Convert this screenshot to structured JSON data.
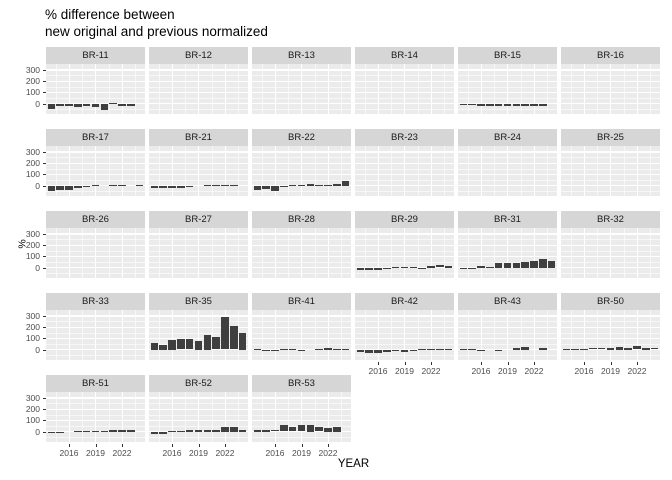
{
  "title": {
    "line1": "% difference between",
    "line2": "new original and previous normalized"
  },
  "axes": {
    "x_label": "YEAR",
    "y_label": "%",
    "y_ticks": [
      300,
      200,
      100,
      0
    ],
    "x_ticks": [
      2016,
      2019,
      2022
    ]
  },
  "chart_data": {
    "type": "bar",
    "title": "% difference between new original and previous normalized",
    "xlabel": "YEAR",
    "ylabel": "%",
    "years": [
      2014,
      2015,
      2016,
      2017,
      2018,
      2019,
      2020,
      2021,
      2022,
      2023,
      2024
    ],
    "ylim": [
      -110,
      350
    ],
    "y_major_gridlines": [
      -100,
      0,
      100,
      200,
      300
    ],
    "y_minor_gridlines": [
      -50,
      50,
      150,
      250
    ],
    "x_major_gridlines": [
      2016,
      2019,
      2022
    ],
    "x_minor_gridlines": [
      2014.5,
      2017.5,
      2020.5,
      2023.5
    ],
    "legend": "none",
    "facet_columns": 6,
    "facets": [
      {
        "label": "BR-11",
        "values": [
          -45,
          -20,
          -25,
          -30,
          -25,
          -30,
          -55,
          4,
          -20,
          -20,
          null
        ]
      },
      {
        "label": "BR-12",
        "values": []
      },
      {
        "label": "BR-13",
        "values": []
      },
      {
        "label": "BR-14",
        "values": []
      },
      {
        "label": "BR-15",
        "values": [
          -8,
          -12,
          -18,
          -22,
          -18,
          -18,
          -18,
          -22,
          -18,
          -18,
          null
        ]
      },
      {
        "label": "BR-16",
        "values": []
      },
      {
        "label": "BR-17",
        "values": [
          -50,
          -42,
          -35,
          -22,
          -8,
          2,
          null,
          5,
          8,
          null,
          8
        ]
      },
      {
        "label": "BR-21",
        "values": [
          -20,
          -20,
          -20,
          -25,
          -15,
          null,
          3,
          2,
          3,
          3,
          null
        ]
      },
      {
        "label": "BR-22",
        "values": [
          -35,
          -28,
          -45,
          -15,
          5,
          8,
          18,
          8,
          8,
          18,
          45
        ]
      },
      {
        "label": "BR-23",
        "values": []
      },
      {
        "label": "BR-24",
        "values": []
      },
      {
        "label": "BR-25",
        "values": []
      },
      {
        "label": "BR-26",
        "values": []
      },
      {
        "label": "BR-27",
        "values": []
      },
      {
        "label": "BR-28",
        "values": []
      },
      {
        "label": "BR-29",
        "values": [
          -18,
          -25,
          -20,
          -10,
          5,
          8,
          8,
          -5,
          18,
          25,
          18
        ]
      },
      {
        "label": "BR-31",
        "values": [
          -5,
          -10,
          15,
          8,
          40,
          45,
          45,
          50,
          60,
          80,
          60
        ]
      },
      {
        "label": "BR-32",
        "values": []
      },
      {
        "label": "BR-33",
        "values": []
      },
      {
        "label": "BR-35",
        "values": [
          60,
          45,
          85,
          95,
          95,
          80,
          130,
          110,
          285,
          210,
          150
        ]
      },
      {
        "label": "BR-41",
        "values": [
          3,
          -8,
          -10,
          4,
          3,
          -5,
          null,
          2,
          12,
          3,
          3
        ]
      },
      {
        "label": "BR-42",
        "values": [
          -25,
          -30,
          -28,
          -20,
          -15,
          -18,
          -12,
          3,
          3,
          5,
          5
        ]
      },
      {
        "label": "BR-43",
        "values": [
          5,
          8,
          -8,
          null,
          -3,
          null,
          12,
          20,
          null,
          15,
          null
        ]
      },
      {
        "label": "BR-50",
        "values": [
          5,
          3,
          8,
          10,
          10,
          18,
          20,
          18,
          32,
          15,
          10
        ]
      },
      {
        "label": "BR-51",
        "values": [
          -8,
          -5,
          null,
          5,
          8,
          8,
          2,
          15,
          15,
          15,
          null
        ]
      },
      {
        "label": "BR-52",
        "values": [
          -25,
          -25,
          2,
          3,
          12,
          12,
          12,
          18,
          45,
          38,
          18
        ]
      },
      {
        "label": "BR-53",
        "values": [
          12,
          15,
          10,
          55,
          42,
          55,
          62,
          42,
          35,
          38,
          null
        ]
      }
    ],
    "colors": {
      "bar": "#3f3f3f",
      "panel_bg": "#ebebeb",
      "strip_bg": "#d6d6d6",
      "gridline": "#ffffff",
      "axis_text": "#4d4d4d",
      "title_text": "#000000"
    }
  }
}
